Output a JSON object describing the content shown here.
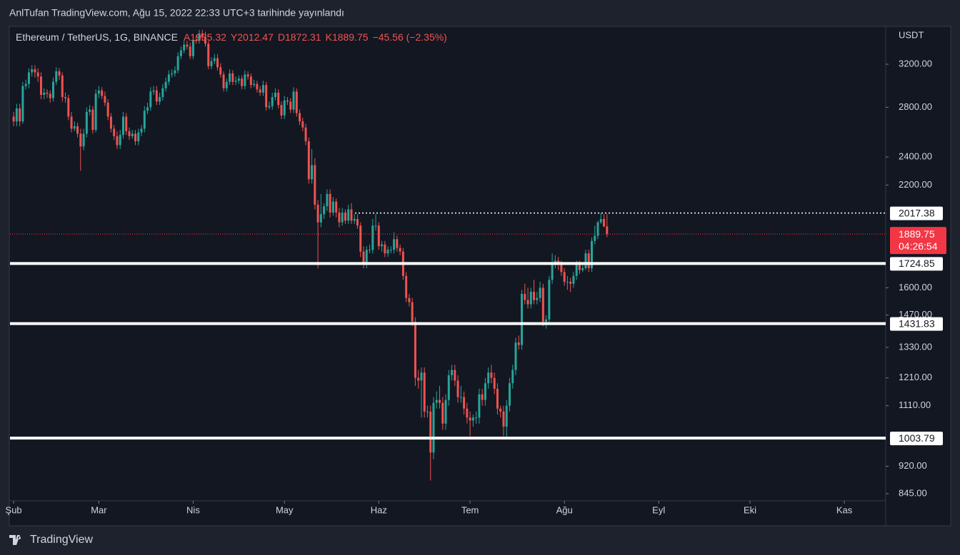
{
  "header": {
    "text": "AnlTufan TradingView.com, Ağu 15, 2022 22:33 UTC+3 tarihinde yayınlandı"
  },
  "footer": {
    "brand": "TradingView"
  },
  "chart_data": {
    "type": "candlestick",
    "legend": {
      "symbol": "Ethereum / TetherUS, 1G, BINANCE",
      "items": [
        {
          "label": "A",
          "value": 1935.32
        },
        {
          "label": "Y",
          "value": 2012.47
        },
        {
          "label": "D",
          "value": 1872.31
        },
        {
          "label": "K",
          "value": 1889.75
        }
      ],
      "change": "−45.56 (−2.35%)"
    },
    "currency": "USDT",
    "up_color": "#26a69a",
    "down_color": "#ef5350",
    "log_scale": true,
    "ylim": [
      830.2,
      3590
    ],
    "yticks": [
      {
        "value": 845,
        "label": "845.00"
      },
      {
        "value": 920,
        "label": "920.00"
      },
      {
        "value": 1110,
        "label": "1110.00"
      },
      {
        "value": 1210,
        "label": "1210.00"
      },
      {
        "value": 1330,
        "label": "1330.00"
      },
      {
        "value": 1470,
        "label": "1470.00"
      },
      {
        "value": 1600,
        "label": "1600.00"
      },
      {
        "value": 2200,
        "label": "2200.00"
      },
      {
        "value": 2400,
        "label": "2400.00"
      },
      {
        "value": 2800,
        "label": "2800.00"
      },
      {
        "value": 3200,
        "label": "3200.00"
      }
    ],
    "xlim": [
      -1.2,
      286.6
    ],
    "xticks": [
      {
        "value": 0,
        "label": "Şub"
      },
      {
        "value": 28,
        "label": "Mar"
      },
      {
        "value": 59,
        "label": "Nis"
      },
      {
        "value": 89,
        "label": "May"
      },
      {
        "value": 120,
        "label": "Haz"
      },
      {
        "value": 150,
        "label": "Tem"
      },
      {
        "value": 181,
        "label": "Ağu"
      },
      {
        "value": 212,
        "label": "Eyl"
      },
      {
        "value": 242,
        "label": "Eki"
      },
      {
        "value": 273,
        "label": "Kas"
      }
    ],
    "levels": [
      {
        "price": 2017.38,
        "style": "dotted"
      },
      {
        "price": 1724.85,
        "style": "solid"
      },
      {
        "price": 1431.83,
        "style": "solid"
      },
      {
        "price": 1003.79,
        "style": "solid"
      }
    ],
    "last_price": {
      "price": 1889.75,
      "countdown": "04:26:54",
      "color": "#f23645"
    },
    "candles": [
      [
        2720,
        2760,
        2640,
        2680
      ],
      [
        2680,
        2830,
        2640,
        2790
      ],
      [
        2790,
        2830,
        2640,
        2680
      ],
      [
        2680,
        3030,
        2660,
        2990
      ],
      [
        2990,
        3050,
        2960,
        3010
      ],
      [
        3010,
        3160,
        2970,
        3120
      ],
      [
        3120,
        3190,
        3080,
        3150
      ],
      [
        3150,
        3190,
        3070,
        3120
      ],
      [
        3120,
        3160,
        3030,
        3080
      ],
      [
        3080,
        3120,
        2870,
        2910
      ],
      [
        2910,
        2970,
        2870,
        2930
      ],
      [
        2930,
        2960,
        2880,
        2920
      ],
      [
        2920,
        2950,
        2840,
        2880
      ],
      [
        2880,
        3070,
        2850,
        3030
      ],
      [
        3030,
        3170,
        3000,
        3130
      ],
      [
        3130,
        3160,
        3050,
        3090
      ],
      [
        3090,
        3120,
        2850,
        2890
      ],
      [
        2890,
        2930,
        2840,
        2880
      ],
      [
        2880,
        2910,
        2690,
        2720
      ],
      [
        2720,
        2760,
        2590,
        2620
      ],
      [
        2620,
        2680,
        2600,
        2640
      ],
      [
        2640,
        2670,
        2550,
        2580
      ],
      [
        2580,
        2620,
        2300,
        2480
      ],
      [
        2480,
        2620,
        2450,
        2580
      ],
      [
        2580,
        2800,
        2550,
        2760
      ],
      [
        2760,
        2820,
        2730,
        2780
      ],
      [
        2780,
        2810,
        2580,
        2610
      ],
      [
        2610,
        2960,
        2590,
        2920
      ],
      [
        2920,
        2990,
        2880,
        2950
      ],
      [
        2950,
        2980,
        2870,
        2900
      ],
      [
        2900,
        2940,
        2810,
        2840
      ],
      [
        2840,
        2870,
        2690,
        2720
      ],
      [
        2720,
        2750,
        2590,
        2620
      ],
      [
        2620,
        2650,
        2530,
        2560
      ],
      [
        2560,
        2600,
        2460,
        2490
      ],
      [
        2490,
        2610,
        2460,
        2570
      ],
      [
        2570,
        2760,
        2540,
        2720
      ],
      [
        2720,
        2750,
        2570,
        2600
      ],
      [
        2600,
        2630,
        2530,
        2560
      ],
      [
        2560,
        2610,
        2540,
        2580
      ],
      [
        2580,
        2610,
        2490,
        2520
      ],
      [
        2520,
        2620,
        2490,
        2590
      ],
      [
        2590,
        2650,
        2560,
        2620
      ],
      [
        2620,
        2810,
        2590,
        2770
      ],
      [
        2770,
        2840,
        2740,
        2800
      ],
      [
        2800,
        2980,
        2770,
        2940
      ],
      [
        2940,
        2990,
        2910,
        2950
      ],
      [
        2950,
        2990,
        2820,
        2850
      ],
      [
        2850,
        2930,
        2820,
        2890
      ],
      [
        2890,
        3010,
        2860,
        2970
      ],
      [
        2970,
        3070,
        2940,
        3030
      ],
      [
        3030,
        3140,
        3000,
        3100
      ],
      [
        3100,
        3150,
        3070,
        3110
      ],
      [
        3110,
        3180,
        3080,
        3140
      ],
      [
        3140,
        3320,
        3110,
        3280
      ],
      [
        3280,
        3380,
        3250,
        3340
      ],
      [
        3340,
        3440,
        3310,
        3400
      ],
      [
        3400,
        3440,
        3350,
        3380
      ],
      [
        3380,
        3420,
        3250,
        3280
      ],
      [
        3280,
        3490,
        3250,
        3450
      ],
      [
        3450,
        3500,
        3410,
        3440
      ],
      [
        3440,
        3560,
        3410,
        3520
      ],
      [
        3520,
        3560,
        3440,
        3480
      ],
      [
        3480,
        3540,
        3380,
        3410
      ],
      [
        3410,
        3440,
        3150,
        3180
      ],
      [
        3180,
        3270,
        3150,
        3230
      ],
      [
        3230,
        3300,
        3200,
        3260
      ],
      [
        3260,
        3300,
        3140,
        3170
      ],
      [
        3170,
        3210,
        3070,
        3100
      ],
      [
        3100,
        3130,
        2940,
        2970
      ],
      [
        2970,
        3060,
        2940,
        3030
      ],
      [
        3030,
        3150,
        3000,
        3110
      ],
      [
        3110,
        3140,
        3000,
        3030
      ],
      [
        3030,
        3080,
        3000,
        3040
      ],
      [
        3040,
        3090,
        3010,
        3060
      ],
      [
        3060,
        3090,
        2960,
        2990
      ],
      [
        2990,
        3140,
        2960,
        3100
      ],
      [
        3100,
        3130,
        3050,
        3080
      ],
      [
        3080,
        3110,
        2970,
        3000
      ],
      [
        3000,
        3050,
        2980,
        3010
      ],
      [
        3010,
        3040,
        2930,
        2960
      ],
      [
        2960,
        2990,
        2900,
        2930
      ],
      [
        2930,
        3040,
        2900,
        3000
      ],
      [
        3000,
        3030,
        2770,
        2800
      ],
      [
        2800,
        2850,
        2780,
        2810
      ],
      [
        2810,
        2930,
        2780,
        2890
      ],
      [
        2890,
        2970,
        2860,
        2930
      ],
      [
        2930,
        2960,
        2790,
        2820
      ],
      [
        2820,
        2850,
        2700,
        2730
      ],
      [
        2730,
        2900,
        2700,
        2860
      ],
      [
        2860,
        2890,
        2820,
        2850
      ],
      [
        2850,
        2880,
        2750,
        2780
      ],
      [
        2780,
        2980,
        2750,
        2940
      ],
      [
        2940,
        2970,
        2720,
        2750
      ],
      [
        2750,
        2780,
        2650,
        2680
      ],
      [
        2680,
        2710,
        2600,
        2630
      ],
      [
        2630,
        2660,
        2490,
        2520
      ],
      [
        2520,
        2550,
        2210,
        2240
      ],
      [
        2240,
        2460,
        2210,
        2340
      ],
      [
        2340,
        2390,
        2040,
        2070
      ],
      [
        2070,
        2100,
        1700,
        1960
      ],
      [
        1960,
        2140,
        1930,
        2010
      ],
      [
        2010,
        2080,
        1980,
        2060
      ],
      [
        2060,
        2170,
        2030,
        2140
      ],
      [
        2140,
        2170,
        1990,
        2020
      ],
      [
        2020,
        2120,
        2000,
        2090
      ],
      [
        2090,
        2110,
        1990,
        2020
      ],
      [
        2020,
        2050,
        1930,
        1960
      ],
      [
        1960,
        2050,
        1940,
        2020
      ],
      [
        2020,
        2040,
        1950,
        1970
      ],
      [
        1970,
        2070,
        1950,
        2040
      ],
      [
        2040,
        2080,
        1950,
        1970
      ],
      [
        1970,
        2010,
        1950,
        1980
      ],
      [
        1980,
        2010,
        1920,
        1940
      ],
      [
        1940,
        1960,
        1760,
        1790
      ],
      [
        1790,
        1820,
        1700,
        1720
      ],
      [
        1720,
        1820,
        1700,
        1800
      ],
      [
        1800,
        1830,
        1780,
        1800
      ],
      [
        1800,
        1980,
        1780,
        1940
      ],
      [
        1940,
        2010,
        1910,
        1940
      ],
      [
        1940,
        1960,
        1800,
        1820
      ],
      [
        1820,
        1850,
        1790,
        1830
      ],
      [
        1830,
        1850,
        1760,
        1780
      ],
      [
        1780,
        1820,
        1760,
        1800
      ],
      [
        1800,
        1820,
        1780,
        1800
      ],
      [
        1800,
        1900,
        1780,
        1860
      ],
      [
        1860,
        1880,
        1790,
        1810
      ],
      [
        1810,
        1830,
        1770,
        1790
      ],
      [
        1790,
        1810,
        1640,
        1660
      ],
      [
        1660,
        1680,
        1530,
        1550
      ],
      [
        1550,
        1570,
        1510,
        1530
      ],
      [
        1530,
        1550,
        1420,
        1440
      ],
      [
        1440,
        1460,
        1180,
        1210
      ],
      [
        1210,
        1240,
        1170,
        1200
      ],
      [
        1200,
        1250,
        1070,
        1230
      ],
      [
        1230,
        1250,
        1070,
        1090
      ],
      [
        1090,
        1110,
        1070,
        1090
      ],
      [
        1090,
        1110,
        880,
        960
      ],
      [
        960,
        1140,
        940,
        1120
      ],
      [
        1120,
        1160,
        1100,
        1130
      ],
      [
        1130,
        1180,
        1100,
        1120
      ],
      [
        1120,
        1140,
        1030,
        1050
      ],
      [
        1050,
        1150,
        1030,
        1130
      ],
      [
        1130,
        1240,
        1110,
        1220
      ],
      [
        1220,
        1260,
        1200,
        1240
      ],
      [
        1240,
        1260,
        1180,
        1200
      ],
      [
        1200,
        1220,
        1120,
        1140
      ],
      [
        1140,
        1180,
        1120,
        1140
      ],
      [
        1140,
        1160,
        1080,
        1100
      ],
      [
        1100,
        1120,
        1050,
        1070
      ],
      [
        1070,
        1090,
        1010,
        1060
      ],
      [
        1060,
        1080,
        1040,
        1070
      ],
      [
        1070,
        1090,
        1050,
        1070
      ],
      [
        1070,
        1170,
        1050,
        1150
      ],
      [
        1150,
        1170,
        1110,
        1130
      ],
      [
        1130,
        1210,
        1110,
        1190
      ],
      [
        1190,
        1250,
        1170,
        1230
      ],
      [
        1230,
        1260,
        1190,
        1210
      ],
      [
        1210,
        1230,
        1150,
        1170
      ],
      [
        1170,
        1190,
        1080,
        1100
      ],
      [
        1100,
        1110,
        1070,
        1090
      ],
      [
        1090,
        1110,
        1010,
        1040
      ],
      [
        1040,
        1130,
        1006,
        1110
      ],
      [
        1110,
        1210,
        1090,
        1190
      ],
      [
        1190,
        1260,
        1170,
        1240
      ],
      [
        1240,
        1370,
        1220,
        1350
      ],
      [
        1350,
        1380,
        1320,
        1340
      ],
      [
        1340,
        1590,
        1320,
        1570
      ],
      [
        1570,
        1620,
        1520,
        1540
      ],
      [
        1540,
        1600,
        1500,
        1520
      ],
      [
        1520,
        1600,
        1500,
        1580
      ],
      [
        1580,
        1640,
        1520,
        1540
      ],
      [
        1540,
        1580,
        1520,
        1550
      ],
      [
        1550,
        1630,
        1530,
        1600
      ],
      [
        1600,
        1620,
        1420,
        1440
      ],
      [
        1440,
        1470,
        1410,
        1450
      ],
      [
        1450,
        1660,
        1430,
        1640
      ],
      [
        1640,
        1780,
        1620,
        1720
      ],
      [
        1720,
        1770,
        1700,
        1740
      ],
      [
        1740,
        1760,
        1690,
        1720
      ],
      [
        1720,
        1740,
        1660,
        1680
      ],
      [
        1680,
        1700,
        1610,
        1630
      ],
      [
        1630,
        1660,
        1590,
        1630
      ],
      [
        1630,
        1650,
        1580,
        1620
      ],
      [
        1620,
        1680,
        1600,
        1660
      ],
      [
        1660,
        1740,
        1640,
        1720
      ],
      [
        1720,
        1740,
        1670,
        1690
      ],
      [
        1690,
        1720,
        1680,
        1700
      ],
      [
        1700,
        1800,
        1690,
        1780
      ],
      [
        1780,
        1800,
        1680,
        1700
      ],
      [
        1700,
        1870,
        1680,
        1850
      ],
      [
        1850,
        1940,
        1830,
        1880
      ],
      [
        1880,
        1970,
        1860,
        1960
      ],
      [
        1960,
        2017.38,
        1950,
        1980
      ],
      [
        1980,
        2010,
        1930,
        1935.32
      ],
      [
        1935.32,
        2012.47,
        1872.31,
        1889.75
      ]
    ]
  }
}
